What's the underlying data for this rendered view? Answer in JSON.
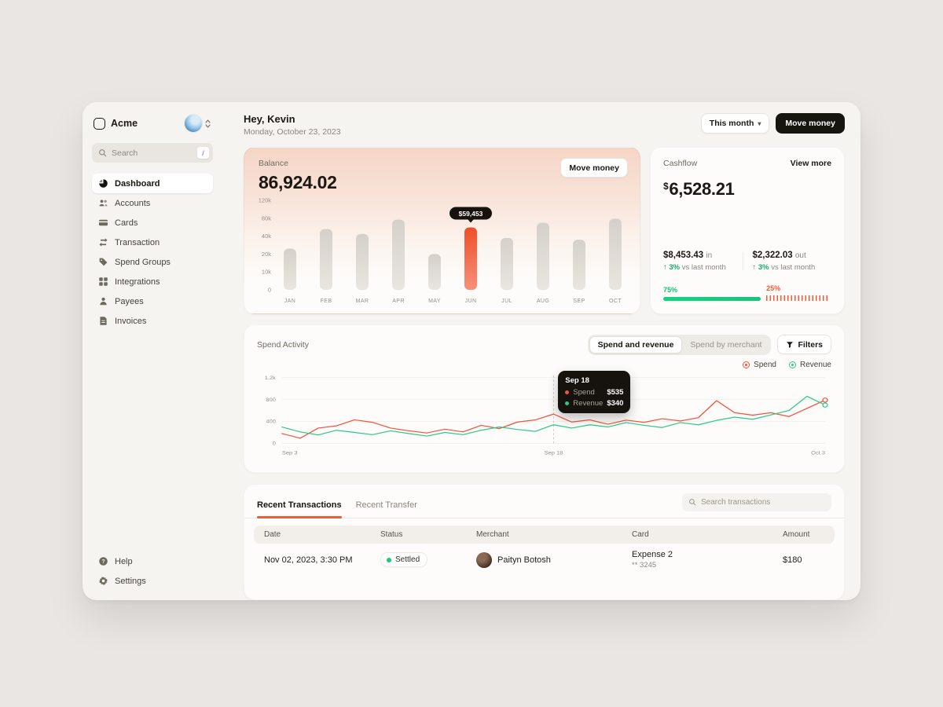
{
  "sidebar": {
    "brand": "Acme",
    "search": {
      "placeholder": "Search",
      "shortcut": "/"
    },
    "items": [
      {
        "label": "Dashboard"
      },
      {
        "label": "Accounts"
      },
      {
        "label": "Cards"
      },
      {
        "label": "Transaction"
      },
      {
        "label": "Spend Groups"
      },
      {
        "label": "Integrations"
      },
      {
        "label": "Payees"
      },
      {
        "label": "Invoices"
      }
    ],
    "footer_items": [
      {
        "label": "Help"
      },
      {
        "label": "Settings"
      }
    ]
  },
  "header": {
    "greeting": "Hey, Kevin",
    "date": "Monday, October 23, 2023",
    "period_button": "This month",
    "move_money_button": "Move money"
  },
  "balance_card": {
    "label": "Balance",
    "value": "86,924.02",
    "button": "Move money",
    "chart_data": {
      "type": "bar",
      "categories": [
        "JAN",
        "FEB",
        "MAR",
        "APR",
        "MAY",
        "JUN",
        "JUL",
        "AUG",
        "SEP",
        "OCT"
      ],
      "values": [
        26000,
        56000,
        45000,
        77000,
        20000,
        59453,
        38000,
        70000,
        36000,
        79000
      ],
      "y_ticks": [
        {
          "value": 120000,
          "label": "120k"
        },
        {
          "value": 80000,
          "label": "80k"
        },
        {
          "value": 40000,
          "label": "40k"
        },
        {
          "value": 20000,
          "label": "20k"
        },
        {
          "value": 10000,
          "label": "10k"
        },
        {
          "value": 0,
          "label": "0"
        }
      ],
      "highlight_index": 5,
      "highlight_label": "$59,453",
      "bar_color": "#ddd8d3",
      "highlight_color": "#f15b36"
    }
  },
  "cashflow_card": {
    "label": "Cashflow",
    "view_more": "View more",
    "currency": "$",
    "value": "6,528.21",
    "inflow": {
      "value": "$8,453.43",
      "suffix": "in",
      "arrow": "↑",
      "delta": "3%",
      "delta_text": "vs last month"
    },
    "outflow": {
      "value": "$2,322.03",
      "suffix": "out",
      "arrow": "↑",
      "delta": "3%",
      "delta_text": "vs last month"
    },
    "in_pct": "75%",
    "out_pct": "25%",
    "in_color": "#15cc80",
    "out_color": "#f15b36"
  },
  "spend_activity": {
    "title": "Spend Activity",
    "toggle": [
      "Spend and revenue",
      "Spend by merchant"
    ],
    "filters": "Filters",
    "legend": [
      {
        "label": "Spend",
        "color": "#f2543b"
      },
      {
        "label": "Revenue",
        "color": "#2bc98a"
      }
    ],
    "tooltip": {
      "date": "Sep 18",
      "spend_label": "Spend",
      "spend": "$535",
      "revenue_label": "Revenue",
      "revenue": "$340"
    },
    "chart_data": {
      "type": "line",
      "x_labels": [
        "Sep 3",
        "Sep 18",
        "Oct 3"
      ],
      "marker_index": 15,
      "y_ticks": [
        {
          "value": 1200,
          "label": "1.2k"
        },
        {
          "value": 800,
          "label": "800"
        },
        {
          "value": 400,
          "label": "400"
        },
        {
          "value": 0,
          "label": "0"
        }
      ],
      "series": [
        {
          "name": "Spend",
          "color": "#f2543b",
          "values": [
            180,
            95,
            280,
            320,
            430,
            385,
            280,
            230,
            190,
            260,
            210,
            330,
            270,
            390,
            430,
            535,
            390,
            430,
            350,
            425,
            385,
            450,
            410,
            470,
            780,
            560,
            515,
            560,
            490,
            640,
            790
          ]
        },
        {
          "name": "Revenue",
          "color": "#2bc98a",
          "values": [
            300,
            210,
            155,
            240,
            200,
            160,
            230,
            180,
            135,
            200,
            160,
            240,
            300,
            255,
            220,
            340,
            280,
            340,
            300,
            380,
            330,
            290,
            380,
            340,
            420,
            480,
            440,
            520,
            600,
            860,
            700
          ]
        }
      ]
    }
  },
  "transactions": {
    "tabs": [
      {
        "label": "Recent Transactions"
      },
      {
        "label": "Recent Transfer"
      }
    ],
    "search_placeholder": "Search transactions",
    "columns": [
      "Date",
      "Status",
      "Merchant",
      "Card",
      "Amount"
    ],
    "rows": [
      {
        "date": "Nov 02, 2023, 3:30 PM",
        "status": "Settled",
        "merchant": "Paityn Botosh",
        "card_name": "Expense 2",
        "card_number": "** 3245",
        "amount": "$180"
      }
    ]
  }
}
